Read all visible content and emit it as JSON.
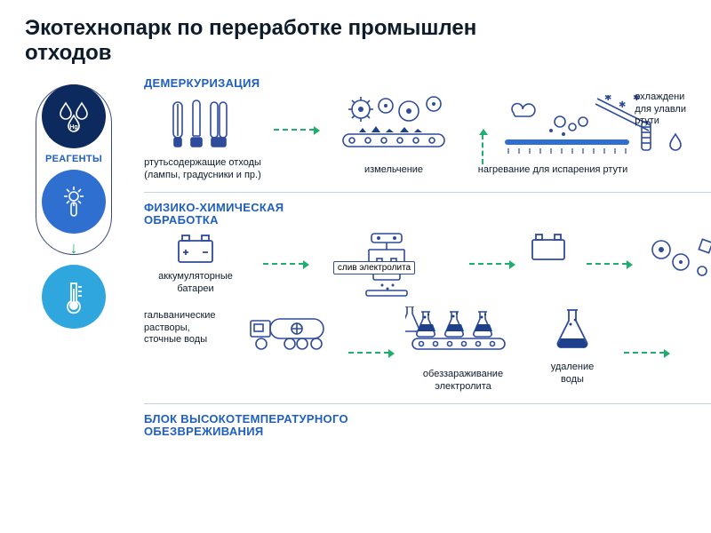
{
  "colors": {
    "text": "#0d1b2a",
    "blue": "#1f5fbf",
    "darkblue": "#0d2a5e",
    "navy": "#0b2b63",
    "midblue": "#2f6fd0",
    "skyblue": "#2fa7de",
    "outline": "#3a4a78",
    "arrow": "#1fae6e",
    "divider": "#c9d3e6",
    "iconStroke": "#2f4b9b",
    "iconFill": "#1d3f8c"
  },
  "title": "Экотехнопарк по переработке промышлен\nотходов",
  "title_fontsize": 24,
  "reagents": {
    "label": "РЕАГЕНТЫ",
    "label_fontsize": 11,
    "circles": [
      {
        "id": "hg",
        "bg": "#0d2a5e",
        "symbol": "Hg"
      },
      {
        "id": "spark",
        "bg": "#2f6fd0"
      },
      {
        "id": "therm",
        "bg": "#2fa7de"
      }
    ]
  },
  "section_title_fontsize": 13,
  "caption_fontsize": 11,
  "section_title_color": "#1f5fbf",
  "sec1": {
    "title": "ДЕМЕРКУРИЗАЦИЯ",
    "waste_label": "ртутьсодержащие отходы\n(лампы, градусники и пр.)",
    "crush_label": "измельчение",
    "heat_label": "нагревание для испарения ртути",
    "cooling_label": "охлаждени\nдля улавли\nртути"
  },
  "sec2": {
    "title": "ФИЗИКО-ХИМИЧЕСКАЯ\nОБРАБОТКА",
    "battery_label": "аккумуляторные\nбатареи",
    "solutions_label": "гальванические\nрастворы,\nсточные воды",
    "drain_label": "слив электролита",
    "decon_label": "обеззараживание\nэлектролита",
    "dewater_label": "удаление\nводы"
  },
  "sec3": {
    "title": "БЛОК ВЫСОКОТЕМПЕРАТУРНОГО\nОБЕЗВРЕЖИВАНИЯ"
  }
}
